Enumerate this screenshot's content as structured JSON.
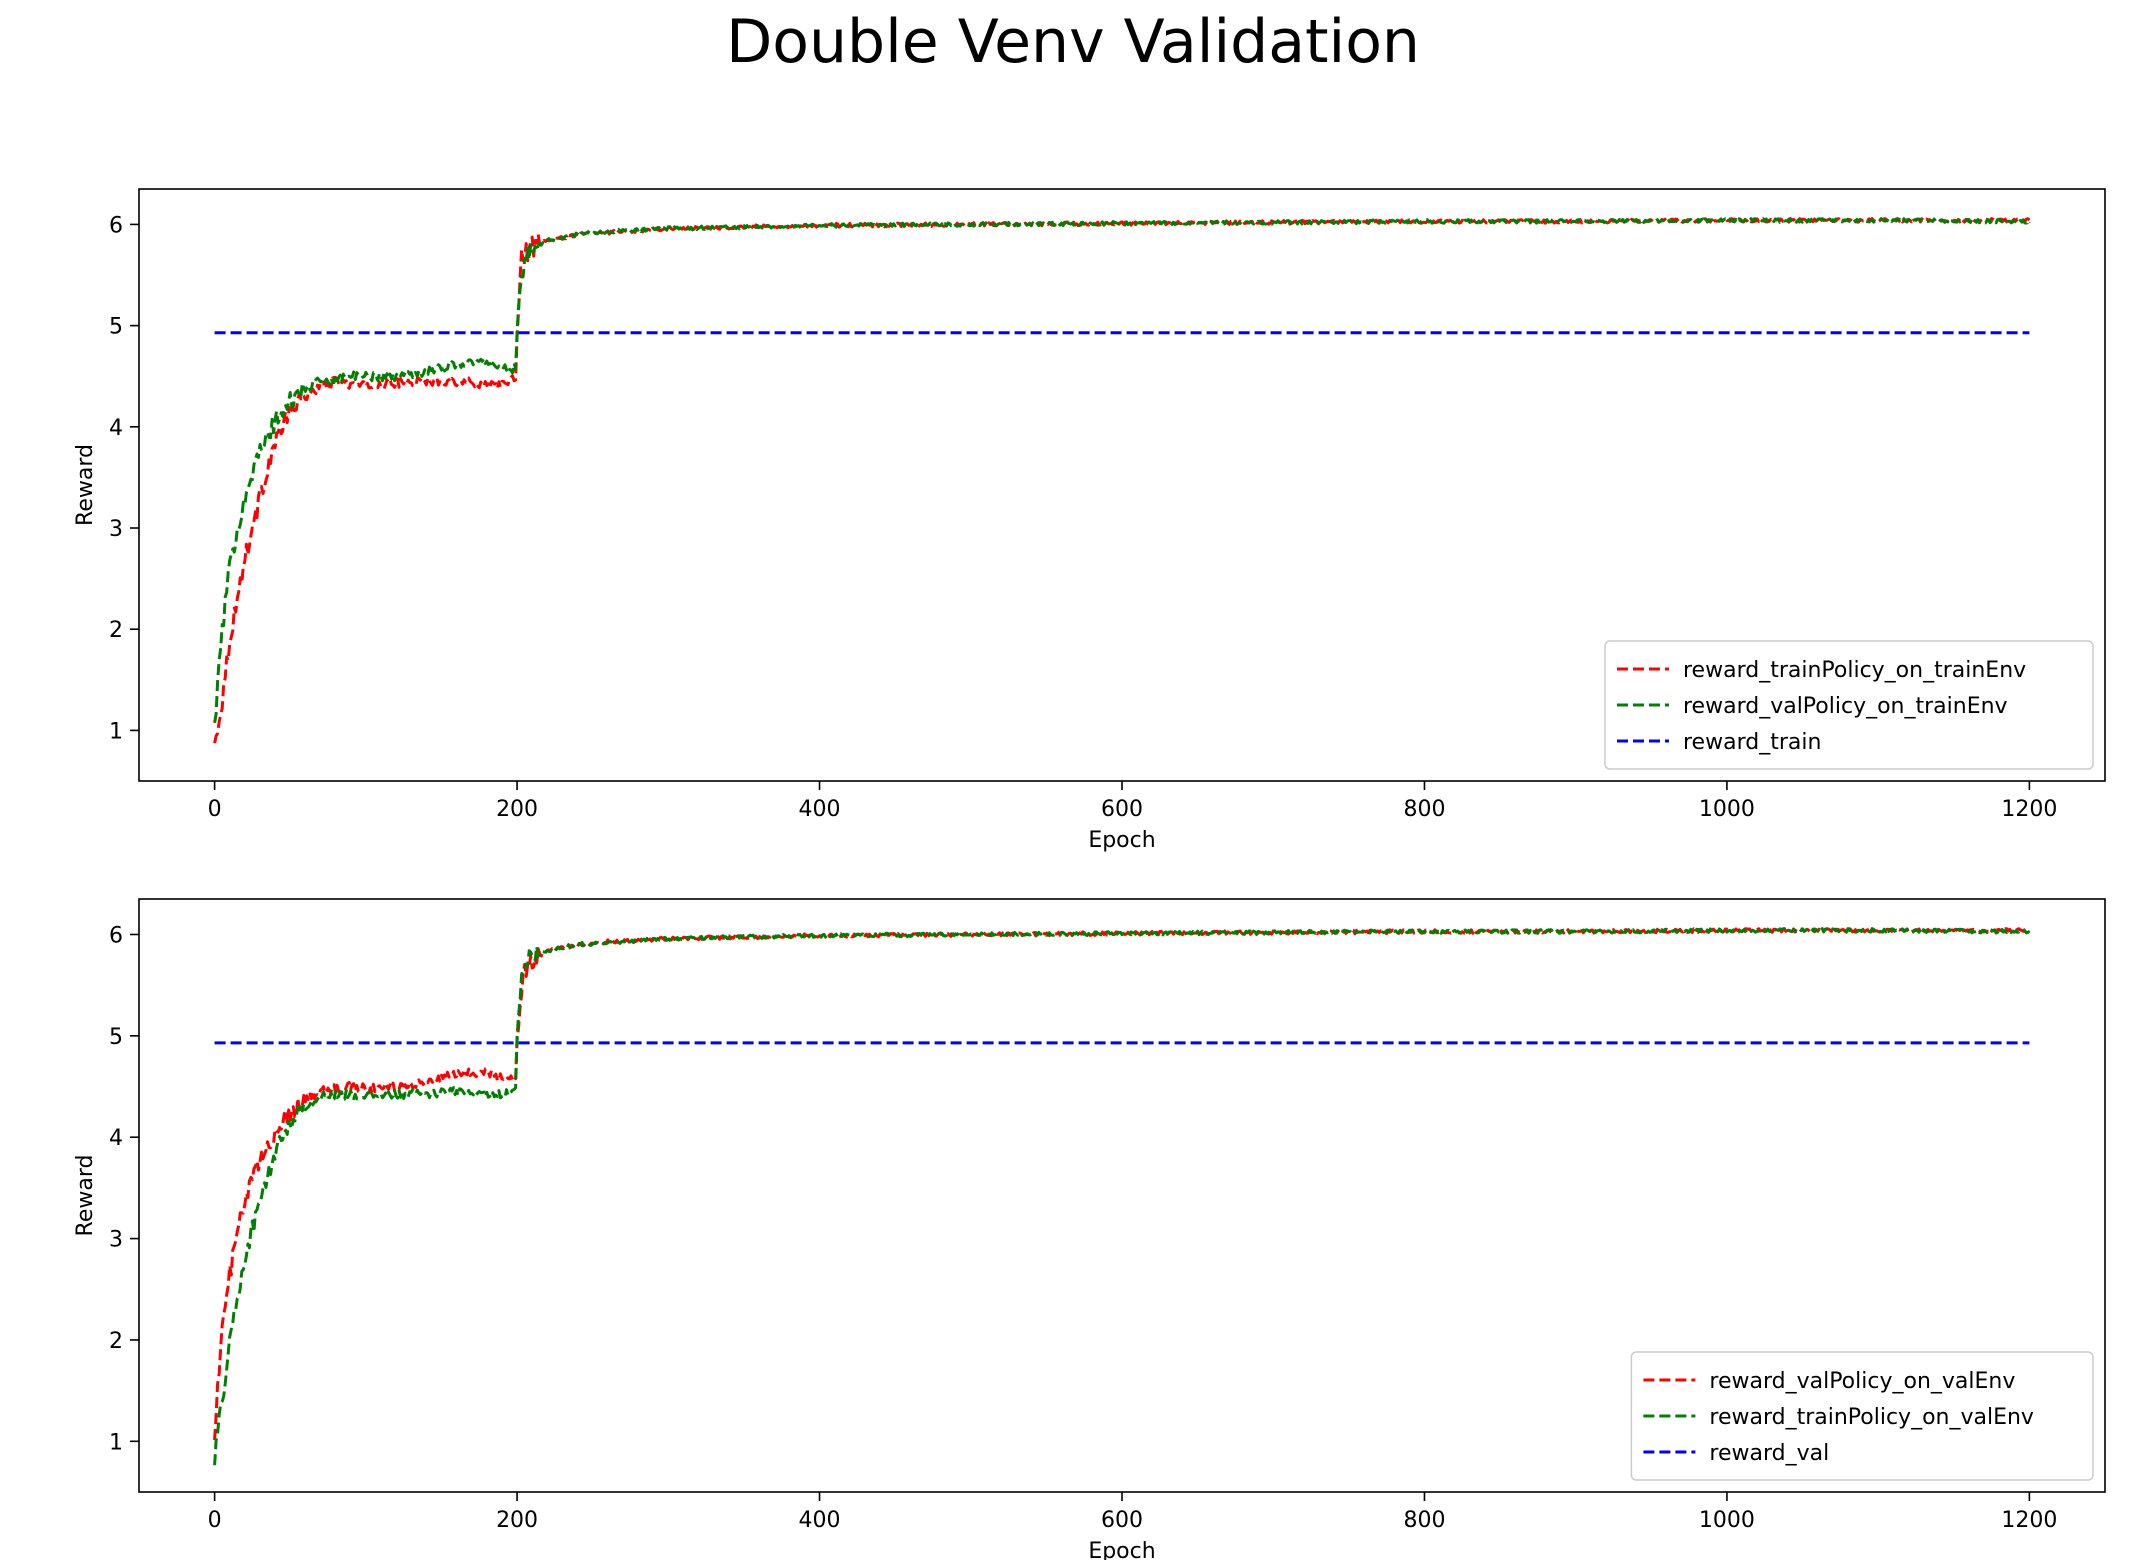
{
  "figure": {
    "title": "Double Venv Validation"
  },
  "chart_data": [
    {
      "type": "line",
      "title": "",
      "xlabel": "Epoch",
      "ylabel": "Reward",
      "xlim": [
        -50,
        1250
      ],
      "ylim": [
        0.5,
        6.35
      ],
      "xticks": [
        0,
        200,
        400,
        600,
        800,
        1000,
        1200
      ],
      "yticks": [
        1,
        2,
        3,
        4,
        5,
        6
      ],
      "grid": false,
      "legend": "lower-right",
      "series": [
        {
          "name": "reward_trainPolicy_on_trainEnv",
          "color": "#ff0000",
          "x": [
            0,
            5,
            10,
            15,
            20,
            25,
            30,
            35,
            40,
            45,
            50,
            60,
            70,
            80,
            90,
            100,
            120,
            140,
            160,
            180,
            195,
            199,
            200,
            203,
            206,
            210,
            220,
            240,
            260,
            300,
            400,
            500,
            600,
            700,
            800,
            900,
            1000,
            1100,
            1200
          ],
          "values": [
            0.85,
            1.3,
            1.9,
            2.3,
            2.7,
            3.0,
            3.3,
            3.6,
            3.85,
            4.0,
            4.15,
            4.3,
            4.4,
            4.45,
            4.42,
            4.4,
            4.43,
            4.45,
            4.45,
            4.42,
            4.43,
            4.5,
            5.0,
            5.65,
            5.72,
            5.78,
            5.84,
            5.9,
            5.92,
            5.96,
            5.99,
            6.0,
            6.01,
            6.02,
            6.03,
            6.03,
            6.04,
            6.04,
            6.04
          ]
        },
        {
          "name": "reward_valPolicy_on_trainEnv",
          "color": "#008000",
          "x": [
            0,
            5,
            10,
            15,
            20,
            25,
            30,
            35,
            40,
            45,
            50,
            60,
            70,
            80,
            90,
            100,
            120,
            140,
            160,
            180,
            195,
            199,
            200,
            203,
            206,
            210,
            220,
            240,
            260,
            300,
            400,
            500,
            600,
            700,
            800,
            900,
            1000,
            1100,
            1200
          ],
          "values": [
            1.05,
            2.0,
            2.6,
            3.0,
            3.3,
            3.55,
            3.75,
            3.9,
            4.05,
            4.15,
            4.25,
            4.38,
            4.45,
            4.48,
            4.5,
            4.5,
            4.5,
            4.55,
            4.62,
            4.65,
            4.55,
            4.6,
            5.0,
            5.5,
            5.68,
            5.75,
            5.84,
            5.9,
            5.93,
            5.96,
            5.99,
            6.0,
            6.01,
            6.02,
            6.03,
            6.03,
            6.04,
            6.04,
            6.03
          ]
        },
        {
          "name": "reward_train",
          "color": "#0000ff",
          "x": [
            0,
            1200
          ],
          "values": [
            4.93,
            4.93
          ]
        }
      ]
    },
    {
      "type": "line",
      "title": "",
      "xlabel": "Epoch",
      "ylabel": "Reward",
      "xlim": [
        -50,
        1250
      ],
      "ylim": [
        0.5,
        6.35
      ],
      "xticks": [
        0,
        200,
        400,
        600,
        800,
        1000,
        1200
      ],
      "yticks": [
        1,
        2,
        3,
        4,
        5,
        6
      ],
      "grid": false,
      "legend": "lower-right",
      "series": [
        {
          "name": "reward_valPolicy_on_valEnv",
          "color": "#ff0000",
          "x": [
            0,
            5,
            10,
            15,
            20,
            25,
            30,
            35,
            40,
            45,
            50,
            60,
            70,
            80,
            90,
            100,
            120,
            140,
            160,
            180,
            195,
            199,
            200,
            203,
            206,
            210,
            220,
            240,
            260,
            300,
            400,
            500,
            600,
            700,
            800,
            900,
            1000,
            1100,
            1200
          ],
          "values": [
            1.1,
            2.1,
            2.65,
            3.05,
            3.35,
            3.6,
            3.75,
            3.9,
            4.05,
            4.15,
            4.25,
            4.38,
            4.45,
            4.48,
            4.5,
            4.48,
            4.5,
            4.55,
            4.62,
            4.65,
            4.55,
            4.6,
            5.0,
            5.5,
            5.68,
            5.75,
            5.84,
            5.9,
            5.93,
            5.96,
            5.99,
            6.0,
            6.01,
            6.02,
            6.03,
            6.03,
            6.04,
            6.04,
            6.04
          ]
        },
        {
          "name": "reward_trainPolicy_on_valEnv",
          "color": "#008000",
          "x": [
            0,
            5,
            10,
            15,
            20,
            25,
            30,
            35,
            40,
            45,
            50,
            60,
            70,
            80,
            90,
            100,
            120,
            140,
            160,
            180,
            195,
            199,
            200,
            203,
            206,
            210,
            220,
            240,
            260,
            300,
            400,
            500,
            600,
            700,
            800,
            900,
            1000,
            1100,
            1200
          ],
          "values": [
            0.85,
            1.4,
            2.0,
            2.4,
            2.8,
            3.1,
            3.35,
            3.6,
            3.85,
            4.0,
            4.15,
            4.3,
            4.4,
            4.42,
            4.42,
            4.4,
            4.42,
            4.43,
            4.45,
            4.42,
            4.43,
            4.5,
            5.0,
            5.62,
            5.72,
            5.78,
            5.84,
            5.9,
            5.92,
            5.96,
            5.99,
            6.0,
            6.01,
            6.02,
            6.03,
            6.03,
            6.04,
            6.04,
            6.03
          ]
        },
        {
          "name": "reward_val",
          "color": "#0000ff",
          "x": [
            0,
            1200
          ],
          "values": [
            4.93,
            4.93
          ]
        }
      ]
    }
  ]
}
